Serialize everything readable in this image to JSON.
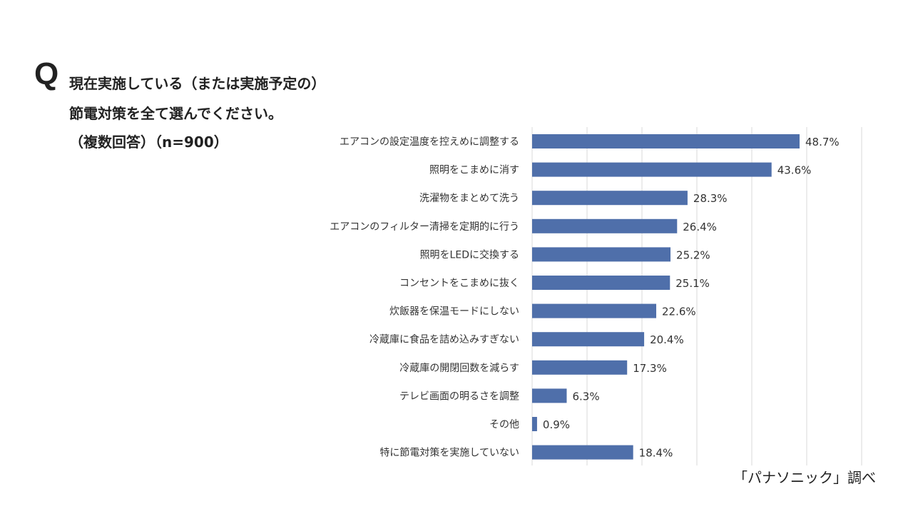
{
  "question": {
    "mark": "Q",
    "line1": "現在実施している（または実施予定の）",
    "line2": "節電対策を全て選んでください。",
    "line3": "（複数回答）（n=900）"
  },
  "source": "「パナソニック」調べ",
  "colors": {
    "bar": "#4f6faa",
    "grid": "#d9d9d9"
  },
  "chart_data": {
    "type": "bar",
    "orientation": "horizontal",
    "categories": [
      "エアコンの設定温度を控えめに調整する",
      "照明をこまめに消す",
      "洗濯物をまとめて洗う",
      "エアコンのフィルター清掃を定期的に行う",
      "照明をLEDに交換する",
      "コンセントをこまめに抜く",
      "炊飯器を保温モードにしない",
      "冷蔵庫に食品を詰め込みすぎない",
      "冷蔵庫の開閉回数を減らす",
      "テレビ画面の明るさを調整",
      "その他",
      "特に節電対策を実施していない"
    ],
    "values": [
      48.7,
      43.6,
      28.3,
      26.4,
      25.2,
      25.1,
      22.6,
      20.4,
      17.3,
      6.3,
      0.9,
      18.4
    ],
    "value_labels": [
      "48.7%",
      "43.6%",
      "28.3%",
      "26.4%",
      "25.2%",
      "25.1%",
      "22.6%",
      "20.4%",
      "17.3%",
      "6.3%",
      "0.9%",
      "18.4%"
    ],
    "xlim": [
      0,
      60
    ],
    "grid": true,
    "x_gridlines": [
      0,
      10,
      20,
      30,
      40,
      50,
      60
    ]
  }
}
